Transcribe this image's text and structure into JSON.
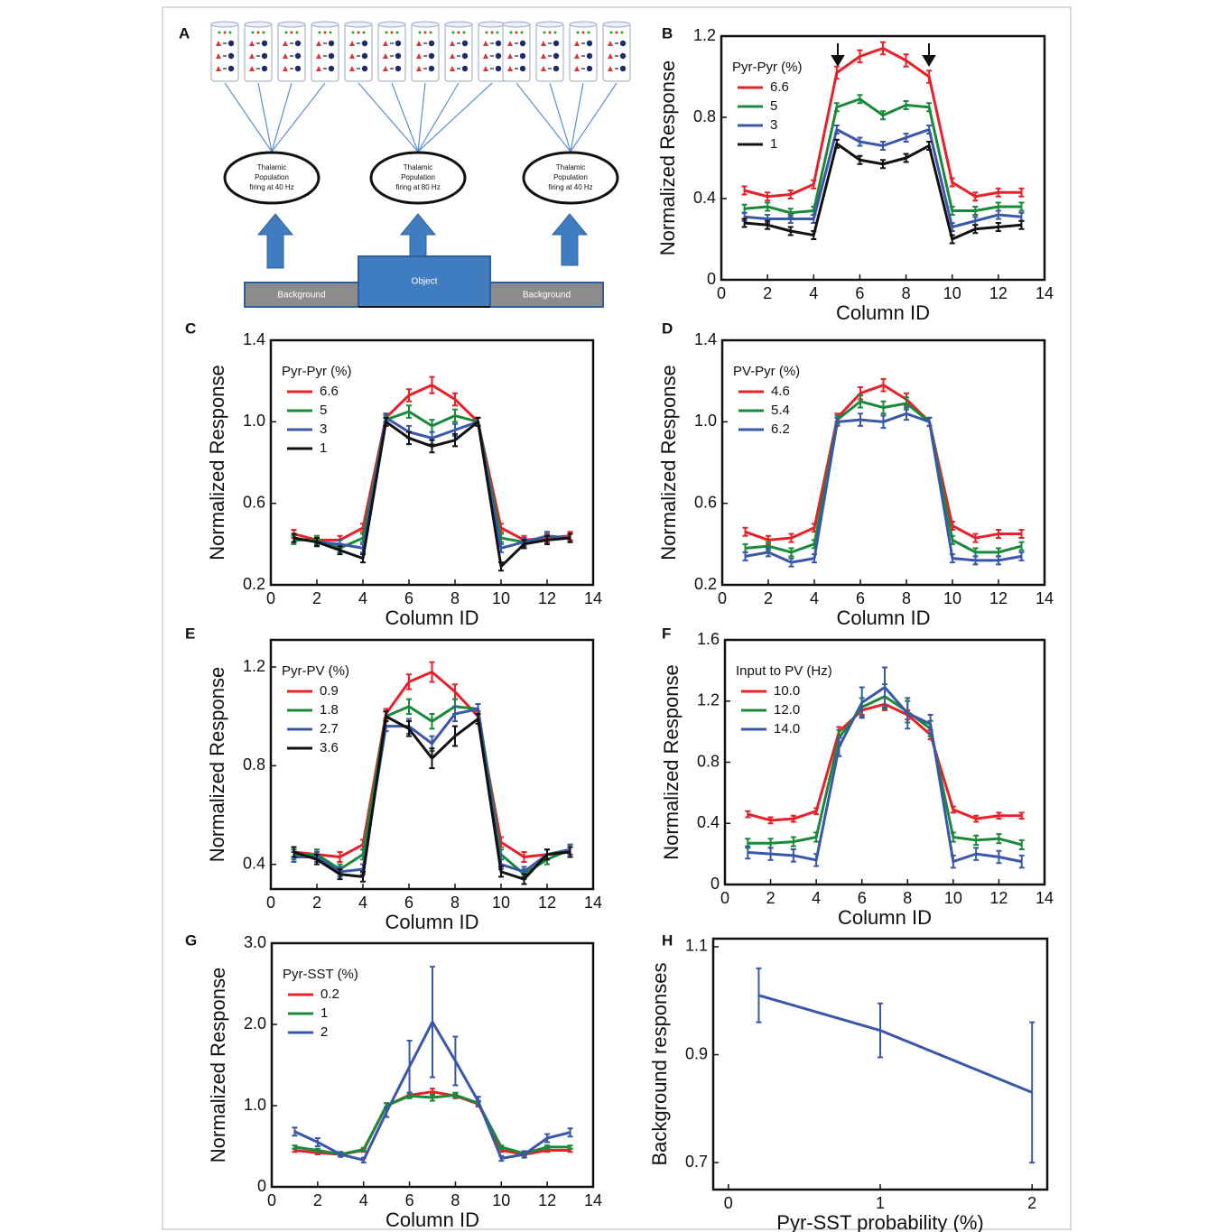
{
  "diagram": {
    "panel": "A",
    "populations": [
      [
        "Thalamic",
        "Population",
        "firing at 40 Hz"
      ],
      [
        "Thalamic",
        "Population",
        "firing at 80 Hz"
      ],
      [
        "Thalamic",
        "Population",
        "firing at 40 Hz"
      ]
    ],
    "blocks": [
      "Background",
      "Object",
      "Background"
    ]
  },
  "chart_data": [
    {
      "type": "line",
      "panel": "B",
      "xlabel": "Column ID",
      "ylabel": "Normalized Response",
      "legend_title": "Pyr-Pyr (%)",
      "legend": "upper left",
      "xlim": [
        0,
        14
      ],
      "xticks": [
        0,
        2,
        4,
        6,
        8,
        10,
        12,
        14
      ],
      "ylim": [
        0,
        1.2
      ],
      "yticks": [
        0,
        0.4,
        0.8,
        1.2
      ],
      "x": [
        1,
        2,
        3,
        4,
        5,
        6,
        7,
        8,
        9,
        10,
        11,
        12,
        13
      ],
      "series": [
        {
          "name": "6.6",
          "color": "#e8202a",
          "values": [
            0.44,
            0.41,
            0.42,
            0.47,
            1.02,
            1.1,
            1.14,
            1.08,
            1.0,
            0.48,
            0.41,
            0.43,
            0.43
          ],
          "errors": [
            0.02,
            0.02,
            0.02,
            0.02,
            0.03,
            0.03,
            0.03,
            0.03,
            0.03,
            0.02,
            0.02,
            0.02,
            0.02
          ]
        },
        {
          "name": "5",
          "color": "#1a8a3a",
          "values": [
            0.35,
            0.36,
            0.33,
            0.34,
            0.85,
            0.89,
            0.81,
            0.86,
            0.85,
            0.34,
            0.34,
            0.36,
            0.36
          ],
          "errors": [
            0.02,
            0.02,
            0.02,
            0.02,
            0.02,
            0.02,
            0.02,
            0.02,
            0.02,
            0.02,
            0.02,
            0.02,
            0.02
          ]
        },
        {
          "name": "3",
          "color": "#3a57a8",
          "values": [
            0.31,
            0.3,
            0.3,
            0.3,
            0.74,
            0.68,
            0.66,
            0.7,
            0.74,
            0.26,
            0.29,
            0.32,
            0.31
          ],
          "errors": [
            0.02,
            0.02,
            0.02,
            0.02,
            0.02,
            0.02,
            0.02,
            0.02,
            0.02,
            0.02,
            0.02,
            0.02,
            0.02
          ]
        },
        {
          "name": "1",
          "color": "#111111",
          "values": [
            0.28,
            0.27,
            0.24,
            0.22,
            0.67,
            0.59,
            0.57,
            0.6,
            0.66,
            0.2,
            0.25,
            0.26,
            0.27
          ],
          "errors": [
            0.02,
            0.02,
            0.02,
            0.02,
            0.02,
            0.02,
            0.02,
            0.02,
            0.02,
            0.02,
            0.02,
            0.02,
            0.02
          ]
        }
      ]
    },
    {
      "type": "line",
      "panel": "C",
      "xlabel": "Column ID",
      "ylabel": "Normalized Response",
      "legend_title": "Pyr-Pyr (%)",
      "legend": "upper left",
      "xlim": [
        0,
        14
      ],
      "xticks": [
        0,
        2,
        4,
        6,
        8,
        10,
        12,
        14
      ],
      "ylim": [
        0.2,
        1.4
      ],
      "yticks": [
        0.2,
        0.6,
        {
          "value": 1,
          "label": "1.0"
        },
        1.4
      ],
      "x": [
        1,
        2,
        3,
        4,
        5,
        6,
        7,
        8,
        9,
        10,
        11,
        12,
        13
      ],
      "series": [
        {
          "name": "6.6",
          "color": "#e8202a",
          "values": [
            0.45,
            0.42,
            0.42,
            0.48,
            1.02,
            1.13,
            1.18,
            1.11,
            1.0,
            0.48,
            0.42,
            0.43,
            0.44
          ],
          "errors": [
            0.02,
            0.02,
            0.02,
            0.02,
            0.02,
            0.03,
            0.04,
            0.03,
            0.02,
            0.02,
            0.02,
            0.02,
            0.02
          ]
        },
        {
          "name": "5",
          "color": "#1a8a3a",
          "values": [
            0.42,
            0.42,
            0.38,
            0.43,
            1.01,
            1.05,
            0.98,
            1.03,
            1.0,
            0.43,
            0.41,
            0.42,
            0.43
          ],
          "errors": [
            0.02,
            0.02,
            0.02,
            0.02,
            0.02,
            0.03,
            0.03,
            0.03,
            0.02,
            0.02,
            0.02,
            0.02,
            0.02
          ]
        },
        {
          "name": "3",
          "color": "#3a57a8",
          "values": [
            0.43,
            0.41,
            0.4,
            0.38,
            1.02,
            0.95,
            0.92,
            0.96,
            1.0,
            0.38,
            0.41,
            0.44,
            0.43
          ],
          "errors": [
            0.02,
            0.02,
            0.02,
            0.02,
            0.02,
            0.03,
            0.03,
            0.03,
            0.02,
            0.02,
            0.02,
            0.02,
            0.02
          ]
        },
        {
          "name": "1",
          "color": "#111111",
          "values": [
            0.43,
            0.41,
            0.37,
            0.33,
            1.0,
            0.92,
            0.88,
            0.91,
            1.0,
            0.29,
            0.4,
            0.42,
            0.43
          ],
          "errors": [
            0.02,
            0.02,
            0.02,
            0.02,
            0.02,
            0.03,
            0.03,
            0.03,
            0.02,
            0.02,
            0.02,
            0.02,
            0.02
          ]
        }
      ]
    },
    {
      "type": "line",
      "panel": "D",
      "xlabel": "Column ID",
      "ylabel": "Normalized Response",
      "legend_title": "PV-Pyr (%)",
      "legend": "upper left",
      "xlim": [
        0,
        14
      ],
      "xticks": [
        0,
        2,
        4,
        6,
        8,
        10,
        12,
        14
      ],
      "ylim": [
        0.2,
        1.4
      ],
      "yticks": [
        0.2,
        0.6,
        {
          "value": 1,
          "label": "1.0"
        },
        1.4
      ],
      "x": [
        1,
        2,
        3,
        4,
        5,
        6,
        7,
        8,
        9,
        10,
        11,
        12,
        13
      ],
      "series": [
        {
          "name": "4.6",
          "color": "#e8202a",
          "values": [
            0.46,
            0.42,
            0.43,
            0.48,
            1.02,
            1.14,
            1.18,
            1.11,
            1.0,
            0.49,
            0.43,
            0.45,
            0.45
          ],
          "errors": [
            0.02,
            0.02,
            0.02,
            0.02,
            0.02,
            0.03,
            0.03,
            0.03,
            0.02,
            0.02,
            0.02,
            0.02,
            0.02
          ]
        },
        {
          "name": "5.4",
          "color": "#1a8a3a",
          "values": [
            0.38,
            0.39,
            0.36,
            0.4,
            1.01,
            1.1,
            1.07,
            1.09,
            1.0,
            0.42,
            0.36,
            0.36,
            0.39
          ],
          "errors": [
            0.02,
            0.02,
            0.02,
            0.02,
            0.02,
            0.03,
            0.03,
            0.03,
            0.02,
            0.02,
            0.02,
            0.02,
            0.02
          ]
        },
        {
          "name": "6.2",
          "color": "#3a57a8",
          "values": [
            0.34,
            0.36,
            0.31,
            0.33,
            1.0,
            1.01,
            1.0,
            1.04,
            1.0,
            0.33,
            0.32,
            0.32,
            0.34
          ],
          "errors": [
            0.02,
            0.02,
            0.02,
            0.02,
            0.02,
            0.03,
            0.03,
            0.03,
            0.02,
            0.02,
            0.02,
            0.02,
            0.02
          ]
        }
      ]
    },
    {
      "type": "line",
      "panel": "E",
      "xlabel": "Column ID",
      "ylabel": "Normalized Response",
      "legend_title": "Pyr-PV (%)",
      "legend": "upper left",
      "xlim": [
        0,
        14
      ],
      "xticks": [
        0,
        2,
        4,
        6,
        8,
        10,
        12,
        14
      ],
      "ylim": [
        0.3,
        1.31
      ],
      "yticks": [
        0.4,
        0.8,
        1.2
      ],
      "x": [
        1,
        2,
        3,
        4,
        5,
        6,
        7,
        8,
        9,
        10,
        11,
        12,
        13
      ],
      "series": [
        {
          "name": "0.9",
          "color": "#e8202a",
          "values": [
            0.45,
            0.44,
            0.43,
            0.48,
            1.01,
            1.14,
            1.18,
            1.1,
            1.0,
            0.49,
            0.43,
            0.44,
            0.45
          ],
          "errors": [
            0.02,
            0.02,
            0.02,
            0.02,
            0.02,
            0.03,
            0.04,
            0.03,
            0.02,
            0.02,
            0.02,
            0.02,
            0.02
          ]
        },
        {
          "name": "1.8",
          "color": "#1a8a3a",
          "values": [
            0.44,
            0.44,
            0.38,
            0.44,
            1.0,
            1.04,
            0.98,
            1.04,
            1.03,
            0.44,
            0.36,
            0.42,
            0.46
          ],
          "errors": [
            0.02,
            0.02,
            0.02,
            0.02,
            0.02,
            0.03,
            0.03,
            0.03,
            0.02,
            0.02,
            0.02,
            0.02,
            0.02
          ]
        },
        {
          "name": "2.7",
          "color": "#3a57a8",
          "values": [
            0.43,
            0.43,
            0.37,
            0.38,
            0.96,
            0.96,
            0.89,
            1.01,
            1.03,
            0.4,
            0.37,
            0.44,
            0.46
          ],
          "errors": [
            0.02,
            0.02,
            0.02,
            0.02,
            0.02,
            0.03,
            0.03,
            0.03,
            0.02,
            0.02,
            0.02,
            0.02,
            0.02
          ]
        },
        {
          "name": "3.6",
          "color": "#111111",
          "values": [
            0.45,
            0.42,
            0.36,
            0.35,
            1.0,
            0.95,
            0.83,
            0.92,
            0.99,
            0.37,
            0.34,
            0.44,
            0.45
          ],
          "errors": [
            0.02,
            0.02,
            0.02,
            0.02,
            0.02,
            0.03,
            0.04,
            0.04,
            0.02,
            0.02,
            0.02,
            0.02,
            0.02
          ]
        }
      ]
    },
    {
      "type": "line",
      "panel": "F",
      "xlabel": "Column ID",
      "ylabel": "Normalized Response",
      "legend_title": "Input to PV (Hz)",
      "legend": "upper left",
      "xlim": [
        0,
        14
      ],
      "xticks": [
        0,
        2,
        4,
        6,
        8,
        10,
        12,
        14
      ],
      "ylim": [
        0,
        1.6
      ],
      "yticks": [
        0,
        0.4,
        0.8,
        1.2,
        1.6
      ],
      "x": [
        1,
        2,
        3,
        4,
        5,
        6,
        7,
        8,
        9,
        10,
        11,
        12,
        13
      ],
      "series": [
        {
          "name": "10.0",
          "color": "#e8202a",
          "values": [
            0.46,
            0.42,
            0.43,
            0.48,
            1.0,
            1.14,
            1.18,
            1.11,
            0.98,
            0.49,
            0.43,
            0.45,
            0.45
          ],
          "errors": [
            0.02,
            0.02,
            0.02,
            0.02,
            0.03,
            0.03,
            0.04,
            0.03,
            0.03,
            0.02,
            0.02,
            0.02,
            0.02
          ]
        },
        {
          "name": "12.0",
          "color": "#1a8a3a",
          "values": [
            0.27,
            0.27,
            0.28,
            0.31,
            0.96,
            1.16,
            1.23,
            1.13,
            1.02,
            0.31,
            0.29,
            0.3,
            0.26
          ],
          "errors": [
            0.03,
            0.03,
            0.03,
            0.03,
            0.05,
            0.06,
            0.08,
            0.07,
            0.05,
            0.03,
            0.03,
            0.03,
            0.03
          ]
        },
        {
          "name": "14.0",
          "color": "#3a57a8",
          "values": [
            0.21,
            0.2,
            0.19,
            0.16,
            0.9,
            1.19,
            1.29,
            1.12,
            1.05,
            0.15,
            0.2,
            0.18,
            0.15
          ],
          "errors": [
            0.04,
            0.04,
            0.04,
            0.04,
            0.06,
            0.1,
            0.13,
            0.1,
            0.06,
            0.04,
            0.04,
            0.04,
            0.04
          ]
        }
      ]
    },
    {
      "type": "line",
      "panel": "G",
      "xlabel": "Column ID",
      "ylabel": "Normalized Response",
      "legend_title": "Pyr-SST (%)",
      "legend": "upper left",
      "xlim": [
        0,
        14
      ],
      "xticks": [
        0,
        2,
        4,
        6,
        8,
        10,
        12,
        14
      ],
      "ylim": [
        0,
        3
      ],
      "yticks": [
        0,
        {
          "value": 1,
          "label": "1.0"
        },
        {
          "value": 2,
          "label": "2.0"
        },
        {
          "value": 3,
          "label": "3.0"
        }
      ],
      "x": [
        1,
        2,
        3,
        4,
        5,
        6,
        7,
        8,
        9,
        10,
        11,
        12,
        13
      ],
      "series": [
        {
          "name": "0.2",
          "color": "#e8202a",
          "values": [
            0.45,
            0.42,
            0.4,
            0.45,
            1.0,
            1.13,
            1.17,
            1.12,
            1.02,
            0.45,
            0.4,
            0.45,
            0.45
          ],
          "errors": [
            0.02,
            0.02,
            0.02,
            0.02,
            0.03,
            0.03,
            0.04,
            0.03,
            0.03,
            0.02,
            0.02,
            0.02,
            0.02
          ]
        },
        {
          "name": "1",
          "color": "#1a8a3a",
          "values": [
            0.49,
            0.45,
            0.4,
            0.46,
            1.0,
            1.12,
            1.1,
            1.13,
            1.03,
            0.49,
            0.41,
            0.49,
            0.49
          ],
          "errors": [
            0.02,
            0.02,
            0.02,
            0.02,
            0.03,
            0.03,
            0.04,
            0.03,
            0.03,
            0.02,
            0.02,
            0.02,
            0.02
          ]
        },
        {
          "name": "2",
          "color": "#3a57a8",
          "values": [
            0.68,
            0.55,
            0.4,
            0.33,
            0.92,
            1.48,
            2.03,
            1.55,
            1.05,
            0.35,
            0.4,
            0.6,
            0.67
          ],
          "errors": [
            0.05,
            0.05,
            0.03,
            0.03,
            0.06,
            0.32,
            0.68,
            0.3,
            0.06,
            0.03,
            0.04,
            0.05,
            0.05
          ]
        }
      ]
    },
    {
      "type": "line",
      "panel": "H",
      "xlabel": "Pyr-SST probability (%)",
      "ylabel": "Background responses",
      "xlim": [
        -0.1,
        2.1
      ],
      "xticks": [
        0,
        1,
        2
      ],
      "ylim": [
        0.65,
        1.115
      ],
      "yticks": [
        {
          "value": 0.7,
          "label": "0.7"
        },
        {
          "value": 0.9,
          "label": "0.9"
        },
        {
          "value": 1.1,
          "label": "1.1"
        }
      ],
      "x": [
        0.2,
        1,
        2
      ],
      "series": [
        {
          "color": "#3a57a8",
          "values": [
            1.01,
            0.945,
            0.83
          ],
          "errors": [
            0.05,
            0.05,
            0.13
          ]
        }
      ]
    }
  ]
}
